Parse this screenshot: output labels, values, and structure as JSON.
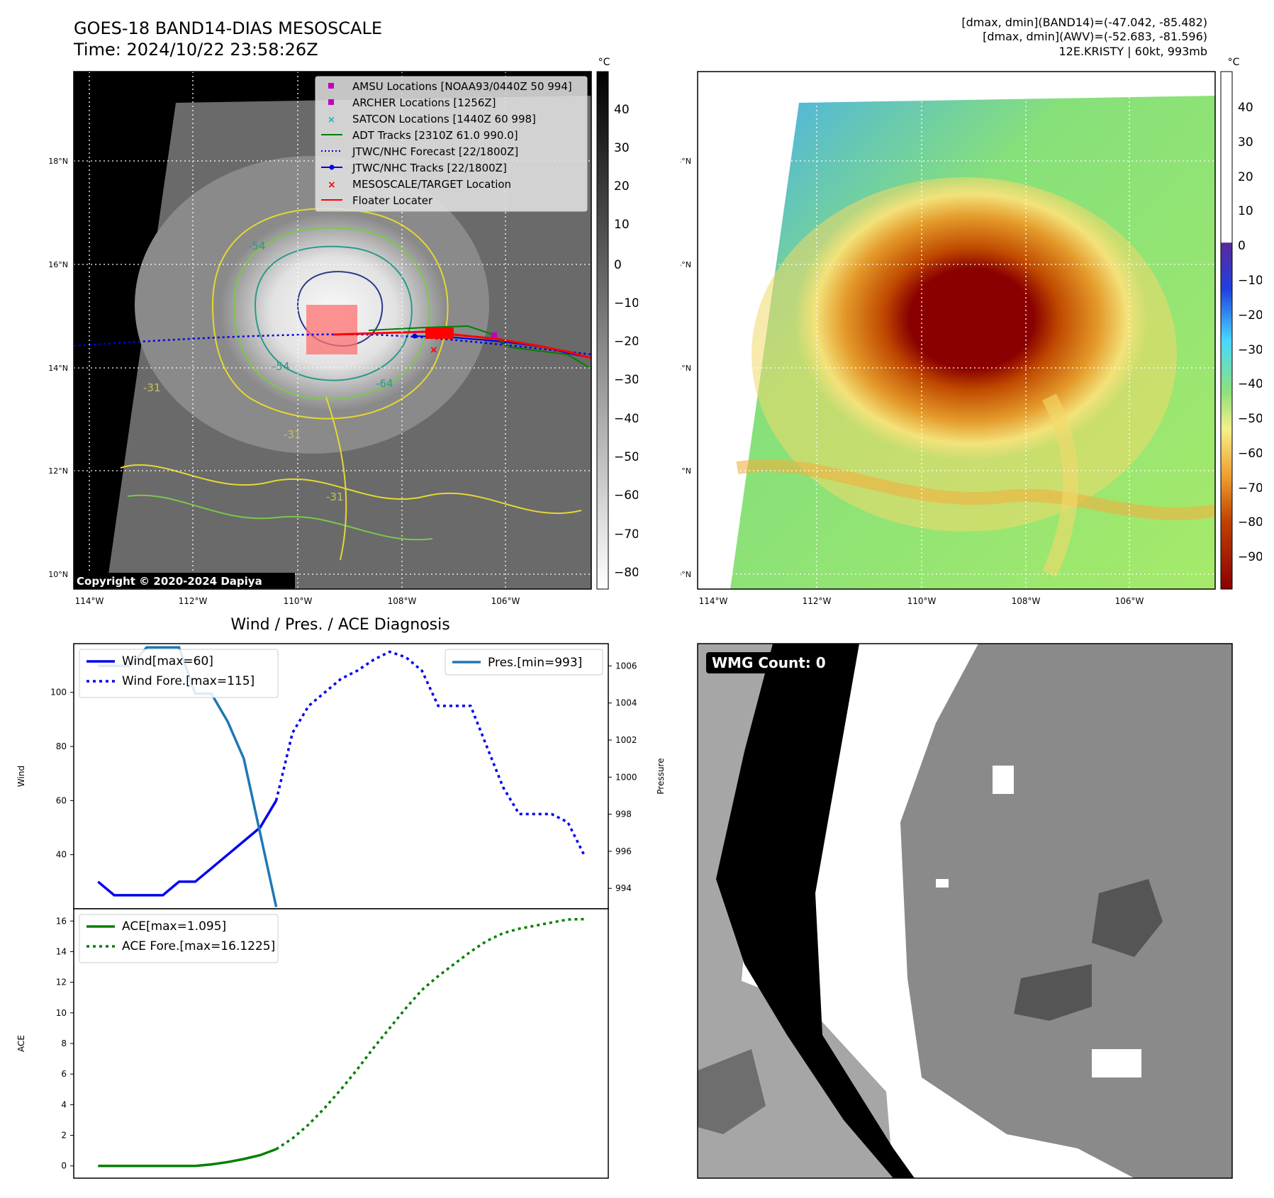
{
  "header": {
    "title_line1": "GOES-18 BAND14-DIAS MESOSCALE",
    "title_line2": "Time: 2024/10/22 23:58:26Z",
    "info_line1": "[dmax, dmin](BAND14)=(-47.042, -85.482)",
    "info_line2": "[dmax, dmin](AWV)=(-52.683, -81.596)",
    "info_line3": "12E.KRISTY | 60kt, 993mb"
  },
  "map_axes": {
    "lon_labels": [
      "114°W",
      "112°W",
      "110°W",
      "108°W",
      "106°W"
    ],
    "lat_labels": [
      "18°N",
      "16°N",
      "14°N",
      "12°N",
      "10°N"
    ]
  },
  "ir_panel": {
    "copyright": "Copyright © 2020-2024 Dapiya",
    "colorbar_unit": "°C",
    "colorbar_ticks": [
      "40",
      "30",
      "20",
      "10",
      "0",
      "−10",
      "−20",
      "−30",
      "−40",
      "−50",
      "−60",
      "−70",
      "−80"
    ],
    "contour_labels": [
      "-54",
      "-54",
      "-64",
      "-31",
      "-31",
      "-31"
    ],
    "legend": [
      {
        "label": "AMSU Locations [NOAA93/0440Z 50 994]",
        "color": "#c000c0"
      },
      {
        "label": "ARCHER Locations [1256Z]",
        "color": "#c000c0"
      },
      {
        "label": "SATCON Locations [1440Z 60 998]",
        "color": "#20b0b0"
      },
      {
        "label": "ADT Tracks [2310Z 61.0 990.0]",
        "color": "#008000"
      },
      {
        "label": "JTWC/NHC Forecast [22/1800Z]",
        "color": "#0000e0"
      },
      {
        "label": "JTWC/NHC Tracks [22/1800Z]",
        "color": "#0000e0"
      },
      {
        "label": "MESOSCALE/TARGET Location",
        "color": "#ff0000"
      },
      {
        "label": "Floater Locater",
        "color": "#ff0000"
      }
    ]
  },
  "awv_panel": {
    "colorbar_unit": "°C",
    "colorbar_ticks": [
      "40",
      "30",
      "20",
      "10",
      "0",
      "−10",
      "−20",
      "−30",
      "−40",
      "−50",
      "−60",
      "−70",
      "−80",
      "−90"
    ]
  },
  "wmg_panel": {
    "label": "WMG Count: 0"
  },
  "chart_data": [
    {
      "type": "line",
      "title": "Wind / Pres. / ACE Diagnosis",
      "ylabel": "Wind",
      "ylim": [
        20,
        118
      ],
      "yticks": [
        40,
        60,
        80,
        100
      ],
      "x": [
        0,
        1,
        2,
        3,
        4,
        5,
        6,
        7,
        8,
        9,
        10,
        11,
        12,
        13,
        14,
        15,
        16,
        17,
        18,
        19,
        20,
        21,
        22,
        23,
        24,
        25,
        26,
        27,
        28,
        29,
        30
      ],
      "series": [
        {
          "name": "Wind[max=60]",
          "color": "#0000ee",
          "style": "solid",
          "x": [
            0,
            1,
            2,
            3,
            4,
            5,
            6,
            7,
            8,
            9,
            10,
            11
          ],
          "values": [
            30,
            25,
            25,
            25,
            25,
            30,
            30,
            35,
            40,
            45,
            50,
            60
          ]
        },
        {
          "name": "Wind Fore.[max=115]",
          "color": "#0000ee",
          "style": "dotted",
          "x": [
            11,
            12,
            13,
            14,
            15,
            16,
            17,
            18,
            19,
            20,
            21,
            22,
            23,
            24,
            25,
            26,
            27,
            28,
            29,
            30
          ],
          "values": [
            60,
            85,
            95,
            100,
            105,
            108,
            112,
            115,
            113,
            108,
            95,
            95,
            95,
            80,
            65,
            55,
            55,
            55,
            52,
            40
          ]
        }
      ],
      "secondary_axis": {
        "ylabel": "Pressure",
        "ylim": [
          992.9,
          1007.2
        ],
        "yticks": [
          994,
          996,
          998,
          1000,
          1002,
          1004,
          1006
        ],
        "series": [
          {
            "name": "Pres.[min=993]",
            "color": "#1f77b4",
            "style": "solid",
            "x": [
              0,
              1,
              2,
              3,
              4,
              5,
              6,
              7,
              8,
              9,
              10,
              11
            ],
            "values": [
              1006,
              1006,
              1006,
              1007,
              1007,
              1007,
              1004.5,
              1004.5,
              1003,
              1001,
              997,
              993
            ]
          }
        ]
      }
    },
    {
      "type": "line",
      "ylabel": "ACE",
      "ylim": [
        -0.8,
        16.8
      ],
      "yticks": [
        0,
        2,
        4,
        6,
        8,
        10,
        12,
        14,
        16
      ],
      "x": [
        0,
        1,
        2,
        3,
        4,
        5,
        6,
        7,
        8,
        9,
        10,
        11,
        12,
        13,
        14,
        15,
        16,
        17,
        18,
        19,
        20,
        21,
        22,
        23,
        24,
        25,
        26,
        27,
        28,
        29,
        30
      ],
      "series": [
        {
          "name": "ACE[max=1.095]",
          "color": "#008000",
          "style": "solid",
          "x": [
            0,
            1,
            2,
            3,
            4,
            5,
            6,
            7,
            8,
            9,
            10,
            11
          ],
          "values": [
            0,
            0,
            0,
            0,
            0,
            0,
            0,
            0.1,
            0.25,
            0.45,
            0.7,
            1.095
          ]
        },
        {
          "name": "ACE Fore.[max=16.1225]",
          "color": "#008000",
          "style": "dotted",
          "x": [
            11,
            12,
            13,
            14,
            15,
            16,
            17,
            18,
            19,
            20,
            21,
            22,
            23,
            24,
            25,
            26,
            27,
            28,
            29,
            30
          ],
          "values": [
            1.095,
            1.8,
            2.7,
            3.8,
            5.0,
            6.3,
            7.7,
            9.0,
            10.3,
            11.5,
            12.4,
            13.2,
            14.0,
            14.7,
            15.2,
            15.5,
            15.7,
            15.9,
            16.1,
            16.1225
          ]
        }
      ]
    }
  ]
}
